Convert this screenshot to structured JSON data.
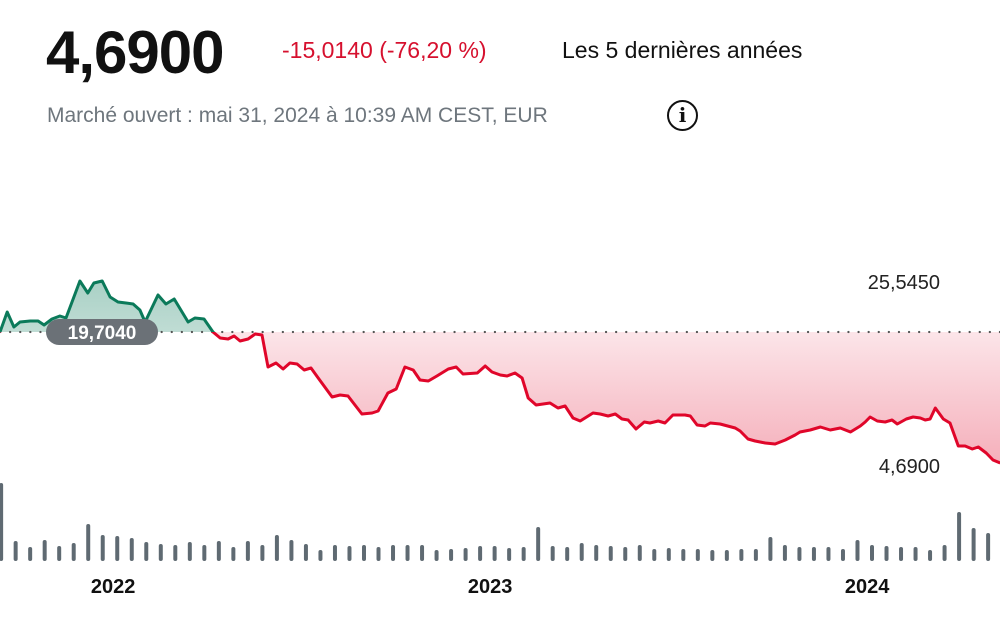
{
  "header": {
    "price": "4,6900",
    "change": "-15,0140 (-76,20 %)",
    "period": "Les 5 dernières années",
    "status": "Marché ouvert : mai 31, 2024 à 10:39 AM CEST, EUR",
    "info_icon": "info-icon"
  },
  "colors": {
    "up": "#0b7a5a",
    "down": "#e0062a",
    "volume": "#5f6a72",
    "pill": "#6b7177"
  },
  "chart_data": {
    "type": "line",
    "title": "",
    "xlabel": "",
    "ylabel": "",
    "x_ticks": [
      {
        "value": 2022,
        "label": "2022"
      },
      {
        "value": 2023,
        "label": "2023"
      },
      {
        "value": 2024,
        "label": "2024"
      }
    ],
    "xlim": [
      2021.7,
      2024.353
    ],
    "ylim": [
      4.69,
      25.545
    ],
    "high_label": "25,5450",
    "low_label": "4,6900",
    "baseline": {
      "value": 19.704,
      "label": "19,7040"
    },
    "series": [
      {
        "name": "price",
        "points": [
          [
            2021.7,
            19.7
          ],
          [
            2021.719,
            21.99
          ],
          [
            2021.737,
            20.28
          ],
          [
            2021.753,
            20.85
          ],
          [
            2021.78,
            20.96
          ],
          [
            2021.801,
            20.96
          ],
          [
            2021.817,
            20.5
          ],
          [
            2021.838,
            21.19
          ],
          [
            2021.859,
            21.54
          ],
          [
            2021.875,
            21.31
          ],
          [
            2021.912,
            25.55
          ],
          [
            2021.933,
            24.17
          ],
          [
            2021.949,
            25.32
          ],
          [
            2021.971,
            25.55
          ],
          [
            2021.992,
            23.71
          ],
          [
            2022.013,
            23.14
          ],
          [
            2022.034,
            23.03
          ],
          [
            2022.053,
            22.91
          ],
          [
            2022.071,
            22.22
          ],
          [
            2022.085,
            20.85
          ],
          [
            2022.119,
            23.94
          ],
          [
            2022.14,
            22.91
          ],
          [
            2022.162,
            23.48
          ],
          [
            2022.199,
            20.85
          ],
          [
            2022.217,
            21.31
          ],
          [
            2022.241,
            21.19
          ],
          [
            2022.265,
            19.7
          ],
          [
            2022.284,
            19.02
          ],
          [
            2022.305,
            18.9
          ],
          [
            2022.321,
            19.24
          ],
          [
            2022.337,
            18.67
          ],
          [
            2022.358,
            18.9
          ],
          [
            2022.377,
            19.47
          ],
          [
            2022.395,
            19.36
          ],
          [
            2022.411,
            15.69
          ],
          [
            2022.432,
            16.15
          ],
          [
            2022.451,
            15.46
          ],
          [
            2022.469,
            16.15
          ],
          [
            2022.488,
            16.04
          ],
          [
            2022.507,
            15.35
          ],
          [
            2022.525,
            15.58
          ],
          [
            2022.544,
            14.43
          ],
          [
            2022.581,
            12.25
          ],
          [
            2022.602,
            12.48
          ],
          [
            2022.623,
            12.37
          ],
          [
            2022.66,
            10.31
          ],
          [
            2022.687,
            10.42
          ],
          [
            2022.703,
            10.65
          ],
          [
            2022.729,
            12.71
          ],
          [
            2022.751,
            13.17
          ],
          [
            2022.774,
            15.69
          ],
          [
            2022.796,
            15.35
          ],
          [
            2022.814,
            14.2
          ],
          [
            2022.836,
            14.09
          ],
          [
            2022.859,
            14.66
          ],
          [
            2022.889,
            15.46
          ],
          [
            2022.91,
            15.69
          ],
          [
            2022.928,
            14.89
          ],
          [
            2022.966,
            15.0
          ],
          [
            2022.987,
            15.81
          ],
          [
            2023.005,
            15.12
          ],
          [
            2023.027,
            14.77
          ],
          [
            2023.045,
            14.66
          ],
          [
            2023.066,
            15.0
          ],
          [
            2023.085,
            14.43
          ],
          [
            2023.101,
            12.14
          ],
          [
            2023.122,
            11.34
          ],
          [
            2023.159,
            11.57
          ],
          [
            2023.18,
            10.99
          ],
          [
            2023.199,
            11.22
          ],
          [
            2023.22,
            9.85
          ],
          [
            2023.239,
            9.5
          ],
          [
            2023.273,
            10.42
          ],
          [
            2023.292,
            10.31
          ],
          [
            2023.313,
            10.08
          ],
          [
            2023.332,
            10.31
          ],
          [
            2023.35,
            9.73
          ],
          [
            2023.366,
            9.62
          ],
          [
            2023.387,
            8.59
          ],
          [
            2023.409,
            9.39
          ],
          [
            2023.424,
            9.27
          ],
          [
            2023.446,
            9.5
          ],
          [
            2023.464,
            9.27
          ],
          [
            2023.485,
            10.19
          ],
          [
            2023.517,
            10.19
          ],
          [
            2023.531,
            10.08
          ],
          [
            2023.549,
            9.04
          ],
          [
            2023.57,
            8.93
          ],
          [
            2023.584,
            9.27
          ],
          [
            2023.61,
            9.16
          ],
          [
            2023.65,
            8.7
          ],
          [
            2023.663,
            8.36
          ],
          [
            2023.684,
            7.44
          ],
          [
            2023.703,
            7.21
          ],
          [
            2023.73,
            6.98
          ],
          [
            2023.756,
            6.87
          ],
          [
            2023.783,
            7.33
          ],
          [
            2023.809,
            7.9
          ],
          [
            2023.822,
            8.24
          ],
          [
            2023.849,
            8.47
          ],
          [
            2023.876,
            8.82
          ],
          [
            2023.902,
            8.47
          ],
          [
            2023.929,
            8.7
          ],
          [
            2023.956,
            8.24
          ],
          [
            2023.982,
            8.93
          ],
          [
            2023.995,
            9.39
          ],
          [
            2024.008,
            9.96
          ],
          [
            2024.027,
            9.5
          ],
          [
            2024.048,
            9.39
          ],
          [
            2024.066,
            9.62
          ],
          [
            2024.08,
            9.16
          ],
          [
            2024.104,
            9.73
          ],
          [
            2024.122,
            9.96
          ],
          [
            2024.141,
            9.85
          ],
          [
            2024.154,
            9.62
          ],
          [
            2024.167,
            9.73
          ],
          [
            2024.181,
            10.99
          ],
          [
            2024.202,
            9.73
          ],
          [
            2024.22,
            9.27
          ],
          [
            2024.242,
            6.64
          ],
          [
            2024.26,
            6.64
          ],
          [
            2024.279,
            6.29
          ],
          [
            2024.295,
            6.52
          ],
          [
            2024.316,
            5.84
          ],
          [
            2024.334,
            5.03
          ],
          [
            2024.353,
            4.69
          ]
        ]
      }
    ],
    "volume": {
      "start": 2021.703,
      "step": 0.0385,
      "values": [
        74,
        16,
        10,
        17,
        11,
        14,
        33,
        22,
        21,
        19,
        15,
        13,
        12,
        15,
        12,
        16,
        10,
        16,
        12,
        22,
        17,
        13,
        7,
        12,
        11,
        12,
        10,
        12,
        12,
        12,
        7,
        8,
        9,
        11,
        11,
        9,
        10,
        30,
        11,
        10,
        14,
        12,
        11,
        10,
        12,
        8,
        9,
        8,
        8,
        7,
        7,
        8,
        8,
        20,
        12,
        10,
        10,
        10,
        8,
        17,
        12,
        11,
        10,
        10,
        7,
        12,
        45,
        29,
        24,
        11
      ]
    }
  }
}
